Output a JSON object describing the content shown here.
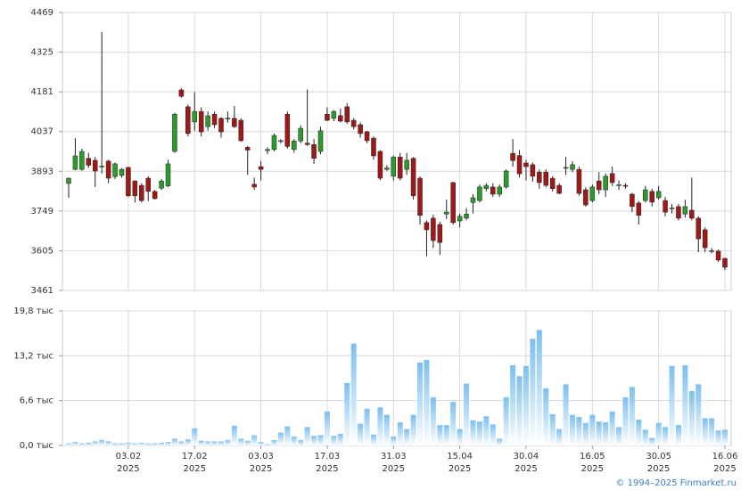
{
  "chart_data": [
    {
      "type": "candlestick",
      "categories": [
        null,
        null,
        null,
        null,
        null,
        null,
        null,
        null,
        null,
        "03.02",
        null,
        null,
        null,
        null,
        null,
        null,
        null,
        null,
        null,
        "17.02",
        null,
        null,
        null,
        null,
        null,
        null,
        null,
        null,
        null,
        "03.03",
        null,
        null,
        null,
        null,
        null,
        null,
        null,
        null,
        null,
        "17.03",
        null,
        null,
        null,
        null,
        null,
        null,
        null,
        null,
        null,
        "31.03",
        null,
        null,
        null,
        null,
        null,
        null,
        null,
        null,
        null,
        "15.04",
        null,
        null,
        null,
        null,
        null,
        null,
        null,
        null,
        null,
        "30.04",
        null,
        null,
        null,
        null,
        null,
        null,
        null,
        null,
        null,
        "16.05",
        null,
        null,
        null,
        null,
        null,
        null,
        null,
        null,
        null,
        "30.05",
        null,
        null,
        null,
        null,
        null,
        null,
        null,
        null,
        null,
        "16.06"
      ],
      "year": "2025",
      "open": [
        3849,
        3900,
        3900,
        3940,
        3933,
        3910,
        3930,
        3874,
        3878,
        3907,
        3858,
        3842,
        3868,
        3820,
        3832,
        3840,
        3965,
        4188,
        4127,
        4072,
        4110,
        4055,
        4100,
        4085,
        4084,
        4085,
        4078,
        3980,
        3846,
        3910,
        3968,
        3972,
        4002,
        4100,
        3972,
        4003,
        3995,
        3990,
        3965,
        4100,
        4085,
        4095,
        4127,
        4078,
        4062,
        4036,
        4013,
        3965,
        3900,
        3875,
        3945,
        3900,
        3940,
        3868,
        3707,
        3723,
        3700,
        3738,
        3852,
        3713,
        3723,
        3780,
        3787,
        3830,
        3836,
        3810,
        3836,
        3958,
        3950,
        3923,
        3917,
        3890,
        3890,
        3868,
        3842,
        3904,
        3900,
        3900,
        3826,
        3787,
        3858,
        3826,
        3885,
        3842,
        3842,
        3810,
        3778,
        3787,
        3820,
        3797,
        3787,
        3758,
        3765,
        3738,
        3752,
        3723,
        3681,
        3603,
        3603,
        3577
      ],
      "high": [
        3870,
        4013,
        3975,
        3960,
        3945,
        4398,
        3935,
        3925,
        3905,
        3910,
        3860,
        3850,
        3875,
        3825,
        3865,
        3935,
        4105,
        4195,
        4135,
        4180,
        4125,
        4110,
        4110,
        4090,
        4110,
        4130,
        4085,
        3985,
        3870,
        3930,
        3980,
        4030,
        4010,
        4110,
        4010,
        4060,
        4190,
        4010,
        4055,
        4125,
        4115,
        4120,
        4140,
        4085,
        4070,
        4040,
        4020,
        3970,
        3915,
        3950,
        3960,
        3960,
        3945,
        3875,
        3715,
        3735,
        3710,
        3790,
        3855,
        3740,
        3760,
        3810,
        3845,
        3850,
        3850,
        3845,
        3900,
        4010,
        3970,
        3935,
        3925,
        3900,
        3900,
        3875,
        3850,
        3945,
        3930,
        3910,
        3835,
        3845,
        3890,
        3885,
        3910,
        3860,
        3850,
        3815,
        3785,
        3840,
        3830,
        3840,
        3800,
        3775,
        3775,
        3790,
        3870,
        3730,
        3690,
        3615,
        3610,
        3580
      ],
      "low": [
        3797,
        3897,
        3895,
        3905,
        3836,
        3885,
        3850,
        3865,
        3870,
        3800,
        3780,
        3780,
        3785,
        3790,
        3825,
        3835,
        3960,
        4160,
        4020,
        4040,
        4020,
        4040,
        4050,
        4015,
        4070,
        4050,
        4000,
        3880,
        3826,
        3860,
        3955,
        3965,
        3995,
        3975,
        3960,
        3995,
        3985,
        3920,
        3955,
        4075,
        4075,
        4070,
        4065,
        4045,
        4015,
        3995,
        3935,
        3860,
        3895,
        3860,
        3860,
        3880,
        3790,
        3700,
        3585,
        3615,
        3590,
        3720,
        3700,
        3690,
        3715,
        3740,
        3780,
        3820,
        3800,
        3800,
        3830,
        3910,
        3870,
        3860,
        3855,
        3830,
        3835,
        3820,
        3810,
        3880,
        3890,
        3805,
        3765,
        3780,
        3810,
        3800,
        3840,
        3825,
        3830,
        3745,
        3700,
        3780,
        3765,
        3790,
        3730,
        3740,
        3715,
        3725,
        3715,
        3600,
        3600,
        3595,
        3565,
        3535
      ],
      "close": [
        3868,
        3949,
        3965,
        3915,
        3894,
        3912,
        3868,
        3920,
        3900,
        3804,
        3804,
        3787,
        3820,
        3794,
        3858,
        3920,
        4100,
        4165,
        4030,
        4110,
        4036,
        4094,
        4062,
        4036,
        4086,
        4055,
        4004,
        3970,
        3836,
        3900,
        3972,
        4023,
        4004,
        3983,
        4003,
        4049,
        3990,
        3940,
        4040,
        4078,
        4110,
        4075,
        4072,
        4055,
        4030,
        4004,
        3949,
        3868,
        3905,
        3945,
        3868,
        3933,
        3804,
        3733,
        3681,
        3642,
        3635,
        3745,
        3707,
        3730,
        3738,
        3797,
        3836,
        3842,
        3810,
        3836,
        3894,
        3932,
        3884,
        3910,
        3875,
        3852,
        3842,
        3830,
        3813,
        3907,
        3917,
        3813,
        3771,
        3836,
        3826,
        3875,
        3852,
        3844,
        3840,
        3765,
        3733,
        3826,
        3781,
        3820,
        3745,
        3760,
        3723,
        3765,
        3723,
        3648,
        3616,
        3605,
        3571,
        3545
      ],
      "ylim": [
        3461,
        4469
      ],
      "yticks": [
        3461,
        3605,
        3749,
        3893,
        4037,
        4181,
        4325,
        4469
      ],
      "grid": true,
      "up_color": "#2e9a2e",
      "down_color": "#a01818"
    },
    {
      "type": "bar",
      "values": [
        0.3,
        0.5,
        0.3,
        0.4,
        0.6,
        0.8,
        0.6,
        0.3,
        0.3,
        0.4,
        0.3,
        0.4,
        0.3,
        0.3,
        0.4,
        0.5,
        1.0,
        0.6,
        0.9,
        2.5,
        0.7,
        0.6,
        0.6,
        0.6,
        0.8,
        2.9,
        1.0,
        0.7,
        1.5,
        0.5,
        0.2,
        0.8,
        1.9,
        2.8,
        1.3,
        0.8,
        2.7,
        1.4,
        1.5,
        5.0,
        1.4,
        1.7,
        9.2,
        15.0,
        3.2,
        5.4,
        1.6,
        5.6,
        4.5,
        1.3,
        3.4,
        2.4,
        4.5,
        12.2,
        12.6,
        7.1,
        3.0,
        3.0,
        6.4,
        2.4,
        9.1,
        3.7,
        3.5,
        4.3,
        3.1,
        1.0,
        7.1,
        11.8,
        10.2,
        11.7,
        15.7,
        17.0,
        8.4,
        4.6,
        2.4,
        9.0,
        4.5,
        4.2,
        3.3,
        4.5,
        3.5,
        3.4,
        5.0,
        2.7,
        7.1,
        8.6,
        3.8,
        2.3,
        1.1,
        3.3,
        2.7,
        11.7,
        3.0,
        11.8,
        8.0,
        9.0,
        4.0,
        4.0,
        2.2,
        2.3
      ],
      "ylim": [
        0,
        19.8
      ],
      "yticks": [
        {
          "value": 0,
          "label": "0,0 тыс"
        },
        {
          "value": 6.6,
          "label": "6,6 тыс"
        },
        {
          "value": 13.2,
          "label": "13,2 тыс"
        },
        {
          "value": 19.8,
          "label": "19,8 тыс"
        }
      ],
      "grid": true,
      "color": "#7cbff0"
    }
  ],
  "footer": "© 1994–2025 Finmarket.ru"
}
